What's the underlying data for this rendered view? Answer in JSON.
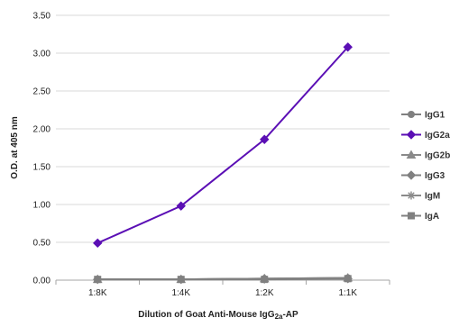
{
  "chart_data": {
    "type": "line",
    "title": "",
    "xlabel_main": "Dilution of Goat Anti-Mouse IgG",
    "xlabel_sub": "2a",
    "xlabel_suffix": "-AP",
    "ylabel": "O.D. at 405 nm",
    "categories": [
      "1:8K",
      "1:4K",
      "1:2K",
      "1:1K"
    ],
    "ylim": [
      0,
      3.5
    ],
    "yticks": [
      "0.00",
      "0.50",
      "1.00",
      "1.50",
      "2.00",
      "2.50",
      "3.00",
      "3.50"
    ],
    "grid": "horizontal",
    "legend_position": "right",
    "series": [
      {
        "name": "IgG1",
        "values": [
          0.01,
          0.01,
          0.02,
          0.03
        ],
        "color": "#808080",
        "marker": "circle"
      },
      {
        "name": "IgG2a",
        "values": [
          0.49,
          0.98,
          1.86,
          3.08
        ],
        "color": "#5b0fb5",
        "marker": "diamond"
      },
      {
        "name": "IgG2b",
        "values": [
          0.01,
          0.01,
          0.02,
          0.03
        ],
        "color": "#8a8a8a",
        "marker": "triangle"
      },
      {
        "name": "IgG3",
        "values": [
          0.01,
          0.01,
          0.02,
          0.02
        ],
        "color": "#808080",
        "marker": "diamond"
      },
      {
        "name": "IgM",
        "values": [
          0.01,
          0.01,
          0.01,
          0.02
        ],
        "color": "#8a8a8a",
        "marker": "star"
      },
      {
        "name": "IgA",
        "values": [
          0.01,
          0.01,
          0.01,
          0.02
        ],
        "color": "#808080",
        "marker": "square"
      }
    ]
  }
}
